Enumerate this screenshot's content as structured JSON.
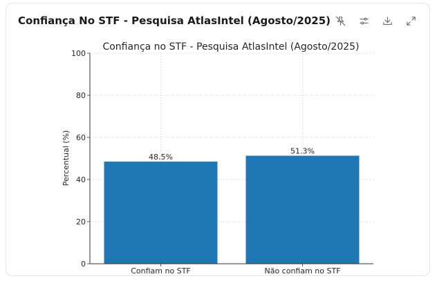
{
  "card": {
    "title": "Confiança No STF - Pesquisa AtlasIntel (Agosto/2025)"
  },
  "toolbar": [
    {
      "name": "pin-icon"
    },
    {
      "name": "sliders-icon"
    },
    {
      "name": "download-icon"
    },
    {
      "name": "expand-icon"
    }
  ],
  "chart_data": {
    "type": "bar",
    "title": "Confiança no STF - Pesquisa AtlasIntel (Agosto/2025)",
    "xlabel": "",
    "ylabel": "Percentual (%)",
    "categories": [
      "Confiam no STF",
      "Não confiam no STF"
    ],
    "values": [
      48.5,
      51.3
    ],
    "data_labels": [
      "48.5%",
      "51.3%"
    ],
    "ylim": [
      0,
      100
    ],
    "yticks": [
      0,
      20,
      40,
      60,
      80,
      100
    ],
    "grid": true,
    "bar_color": "#1f77b4"
  }
}
